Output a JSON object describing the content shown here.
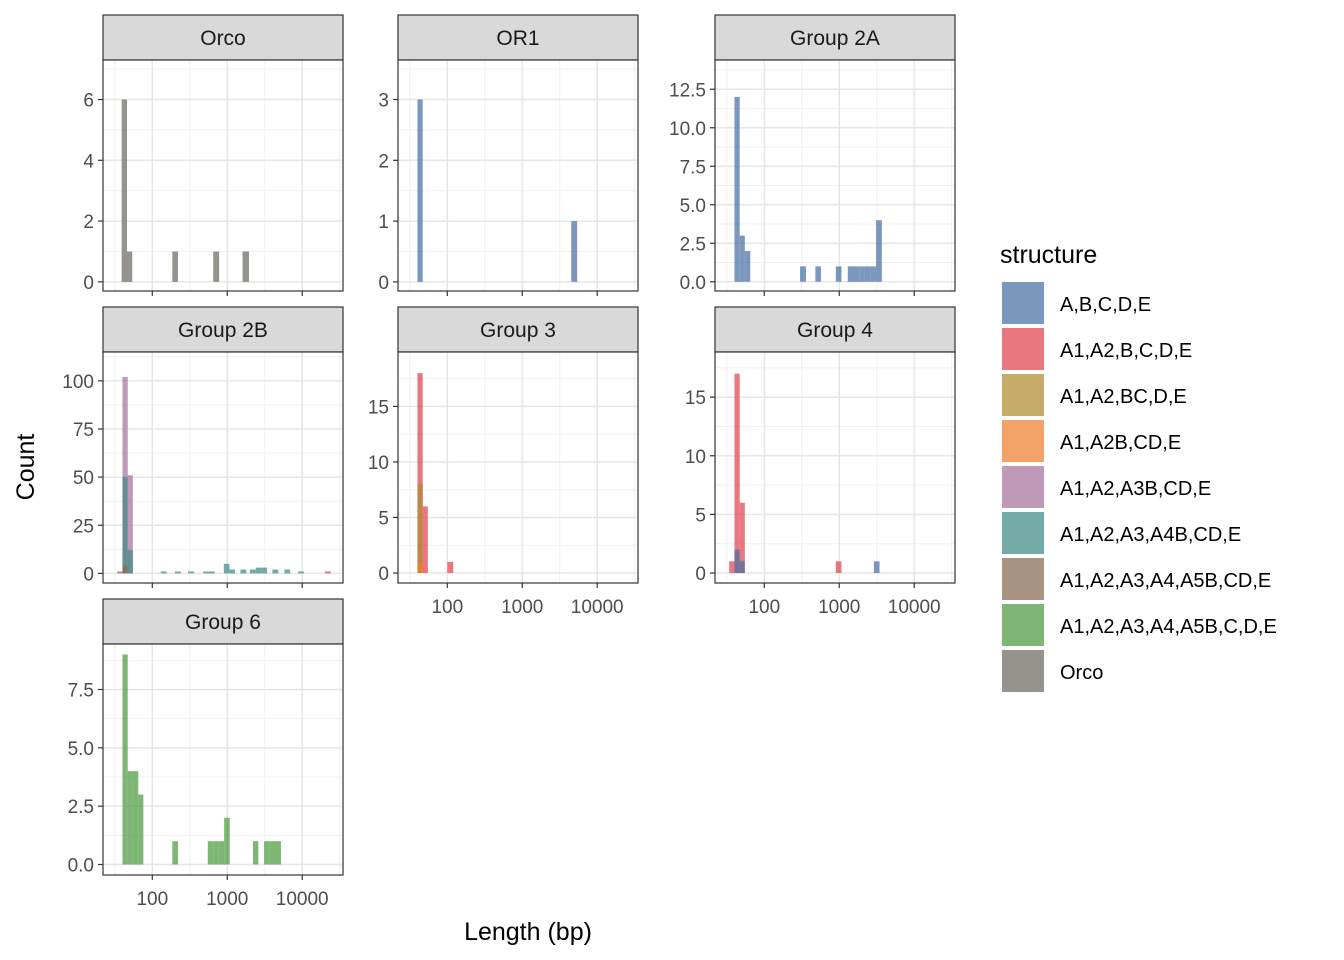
{
  "chart_data": {
    "type": "bar",
    "subtype": "faceted-histogram",
    "xlabel": "Length (bp)",
    "ylabel": "Count",
    "x_scale": "log10",
    "x_ticks": [
      100,
      1000,
      10000
    ],
    "x_tick_labels": [
      "100",
      "1000",
      "10000"
    ],
    "xlim": [
      22,
      35000
    ],
    "grid": true,
    "legend": {
      "title": "structure",
      "placement": "right",
      "entries": [
        {
          "name": "A,B,C,D,E",
          "color": "#4A6FA5"
        },
        {
          "name": "A1,A2,B,C,D,E",
          "color": "#E0434F"
        },
        {
          "name": "A1,A2,BC,D,E",
          "color": "#AE8C2E"
        },
        {
          "name": "A1,A2B,CD,E",
          "color": "#EF8030"
        },
        {
          "name": "A1,A2,A3B,CD,E",
          "color": "#A8709E"
        },
        {
          "name": "A1,A2,A3,A4B,CD,E",
          "color": "#3D8B85"
        },
        {
          "name": "A1,A2,A3,A4,A5B,CD,E",
          "color": "#8B6A50"
        },
        {
          "name": "A1,A2,A3,A4,A5B,C,D,E",
          "color": "#4C9A3E"
        },
        {
          "name": "Orco",
          "color": "#6E6862"
        }
      ]
    },
    "panels": [
      {
        "title": "Orco",
        "ylim": [
          -0.3,
          7.3
        ],
        "y_ticks": [
          0,
          2,
          4,
          6
        ],
        "y_tick_labels": [
          "0",
          "2",
          "4",
          "6"
        ],
        "bars": [
          {
            "series": "Orco",
            "x_from": 39,
            "x_to": 46,
            "count": 6
          },
          {
            "series": "Orco",
            "x_from": 46,
            "x_to": 54,
            "count": 1
          },
          {
            "series": "Orco",
            "x_from": 185,
            "x_to": 220,
            "count": 1
          },
          {
            "series": "Orco",
            "x_from": 650,
            "x_to": 780,
            "count": 1
          },
          {
            "series": "Orco",
            "x_from": 1600,
            "x_to": 1950,
            "count": 1
          }
        ]
      },
      {
        "title": "OR1",
        "ylim": [
          -0.15,
          3.65
        ],
        "y_ticks": [
          0,
          1,
          2,
          3
        ],
        "y_tick_labels": [
          "0",
          "1",
          "2",
          "3"
        ],
        "bars": [
          {
            "series": "A,B,C,D,E",
            "x_from": 40,
            "x_to": 47,
            "count": 3
          },
          {
            "series": "A,B,C,D,E",
            "x_from": 4500,
            "x_to": 5400,
            "count": 1
          }
        ]
      },
      {
        "title": "Group 2A",
        "ylim": [
          -0.6,
          14.4
        ],
        "y_ticks": [
          0,
          2.5,
          5,
          7.5,
          10,
          12.5
        ],
        "y_tick_labels": [
          "0.0",
          "2.5",
          "5.0",
          "7.5",
          "10.0",
          "12.5"
        ],
        "bars": [
          {
            "series": "A,B,C,D,E",
            "x_from": 40,
            "x_to": 47,
            "count": 12
          },
          {
            "series": "A,B,C,D,E",
            "x_from": 47,
            "x_to": 55,
            "count": 3
          },
          {
            "series": "A,B,C,D,E",
            "x_from": 55,
            "x_to": 65,
            "count": 2
          },
          {
            "series": "A,B,C,D,E",
            "x_from": 300,
            "x_to": 360,
            "count": 1
          },
          {
            "series": "A,B,C,D,E",
            "x_from": 480,
            "x_to": 570,
            "count": 1
          },
          {
            "series": "A,B,C,D,E",
            "x_from": 900,
            "x_to": 1070,
            "count": 1
          },
          {
            "series": "A,B,C,D,E",
            "x_from": 1300,
            "x_to": 1550,
            "count": 1
          },
          {
            "series": "A,B,C,D,E",
            "x_from": 1550,
            "x_to": 1850,
            "count": 1
          },
          {
            "series": "A,B,C,D,E",
            "x_from": 1850,
            "x_to": 2200,
            "count": 1
          },
          {
            "series": "A,B,C,D,E",
            "x_from": 2200,
            "x_to": 2600,
            "count": 1
          },
          {
            "series": "A,B,C,D,E",
            "x_from": 2600,
            "x_to": 3100,
            "count": 1
          },
          {
            "series": "A,B,C,D,E",
            "x_from": 3100,
            "x_to": 3700,
            "count": 4
          }
        ]
      },
      {
        "title": "Group 2B",
        "ylim": [
          -5,
          115
        ],
        "y_ticks": [
          0,
          25,
          50,
          75,
          100
        ],
        "y_tick_labels": [
          "0",
          "25",
          "50",
          "75",
          "100"
        ],
        "bars": [
          {
            "series": "A1,A2,A3,A4,A5B,CD,E",
            "x_from": 34,
            "x_to": 40,
            "count": 1
          },
          {
            "series": "A1,A2,A3B,CD,E",
            "x_from": 40,
            "x_to": 47,
            "count": 102
          },
          {
            "series": "A1,A2,A3B,CD,E",
            "x_from": 47,
            "x_to": 55,
            "count": 51
          },
          {
            "series": "A1,A2,A3,A4B,CD,E",
            "x_from": 40,
            "x_to": 47,
            "count": 50
          },
          {
            "series": "A1,A2,A3,A4B,CD,E",
            "x_from": 47,
            "x_to": 55,
            "count": 12
          },
          {
            "series": "A1,A2,A3,A4,A5B,CD,E",
            "x_from": 40,
            "x_to": 47,
            "count": 4
          },
          {
            "series": "A1,A2,A3,A4B,CD,E",
            "x_from": 130,
            "x_to": 155,
            "count": 1
          },
          {
            "series": "A1,A2,A3,A4B,CD,E",
            "x_from": 200,
            "x_to": 240,
            "count": 1
          },
          {
            "series": "A1,A2,A3,A4B,CD,E",
            "x_from": 300,
            "x_to": 360,
            "count": 1
          },
          {
            "series": "A1,A2,A3,A4B,CD,E",
            "x_from": 480,
            "x_to": 570,
            "count": 1
          },
          {
            "series": "A1,A2,A3,A4B,CD,E",
            "x_from": 570,
            "x_to": 680,
            "count": 1
          },
          {
            "series": "A1,A2,A3,A4B,CD,E",
            "x_from": 900,
            "x_to": 1070,
            "count": 5
          },
          {
            "series": "A1,A2,A3,A4B,CD,E",
            "x_from": 1070,
            "x_to": 1270,
            "count": 2
          },
          {
            "series": "A1,A2,A3,A4B,CD,E",
            "x_from": 1500,
            "x_to": 1800,
            "count": 2
          },
          {
            "series": "A1,A2,A3,A4B,CD,E",
            "x_from": 2000,
            "x_to": 2400,
            "count": 2
          },
          {
            "series": "A1,A2,A3,A4B,CD,E",
            "x_from": 2400,
            "x_to": 2850,
            "count": 3
          },
          {
            "series": "A1,A2,A3,A4B,CD,E",
            "x_from": 2850,
            "x_to": 3400,
            "count": 3
          },
          {
            "series": "A1,A2,A3,A4B,CD,E",
            "x_from": 4000,
            "x_to": 4800,
            "count": 2
          },
          {
            "series": "A1,A2,A3,A4B,CD,E",
            "x_from": 5800,
            "x_to": 6900,
            "count": 2
          },
          {
            "series": "A1,A2,A3,A4B,CD,E",
            "x_from": 8800,
            "x_to": 10500,
            "count": 1
          },
          {
            "series": "A1,A2,B,C,D,E",
            "x_from": 20000,
            "x_to": 24000,
            "count": 1
          }
        ]
      },
      {
        "title": "Group 3",
        "ylim": [
          -0.9,
          19.9
        ],
        "y_ticks": [
          0,
          5,
          10,
          15
        ],
        "y_tick_labels": [
          "0",
          "5",
          "10",
          "15"
        ],
        "bars": [
          {
            "series": "A1,A2,B,C,D,E",
            "x_from": 40,
            "x_to": 47,
            "count": 18
          },
          {
            "series": "A1,A2,B,C,D,E",
            "x_from": 47,
            "x_to": 55,
            "count": 6
          },
          {
            "series": "A1,A2,BC,D,E",
            "x_from": 40,
            "x_to": 47,
            "count": 8
          },
          {
            "series": "A1,A2B,CD,E",
            "x_from": 40,
            "x_to": 47,
            "count": 1
          },
          {
            "series": "A1,A2,B,C,D,E",
            "x_from": 100,
            "x_to": 120,
            "count": 1
          }
        ]
      },
      {
        "title": "Group 4",
        "ylim": [
          -0.85,
          18.85
        ],
        "y_ticks": [
          0,
          5,
          10,
          15
        ],
        "y_tick_labels": [
          "0",
          "5",
          "10",
          "15"
        ],
        "bars": [
          {
            "series": "A1,A2,B,C,D,E",
            "x_from": 34,
            "x_to": 40,
            "count": 1
          },
          {
            "series": "A1,A2,B,C,D,E",
            "x_from": 40,
            "x_to": 47,
            "count": 17
          },
          {
            "series": "A1,A2,B,C,D,E",
            "x_from": 47,
            "x_to": 55,
            "count": 6
          },
          {
            "series": "A,B,C,D,E",
            "x_from": 40,
            "x_to": 47,
            "count": 2
          },
          {
            "series": "A,B,C,D,E",
            "x_from": 47,
            "x_to": 55,
            "count": 1
          },
          {
            "series": "A1,A2,B,C,D,E",
            "x_from": 900,
            "x_to": 1070,
            "count": 1
          },
          {
            "series": "A,B,C,D,E",
            "x_from": 2900,
            "x_to": 3450,
            "count": 1
          }
        ]
      },
      {
        "title": "Group 6",
        "ylim": [
          -0.45,
          9.45
        ],
        "y_ticks": [
          0,
          2.5,
          5,
          7.5
        ],
        "y_tick_labels": [
          "0.0",
          "2.5",
          "5.0",
          "7.5"
        ],
        "bars": [
          {
            "series": "A1,A2,A3,A4,A5B,C,D,E",
            "x_from": 40,
            "x_to": 47,
            "count": 9
          },
          {
            "series": "A1,A2,A3,A4,A5B,C,D,E",
            "x_from": 47,
            "x_to": 55,
            "count": 4
          },
          {
            "series": "A1,A2,A3,A4,A5B,C,D,E",
            "x_from": 55,
            "x_to": 65,
            "count": 4
          },
          {
            "series": "A1,A2,A3,A4,A5B,C,D,E",
            "x_from": 65,
            "x_to": 76,
            "count": 3
          },
          {
            "series": "A1,A2,A3,A4,A5B,C,D,E",
            "x_from": 185,
            "x_to": 220,
            "count": 1
          },
          {
            "series": "A1,A2,A3,A4,A5B,C,D,E",
            "x_from": 550,
            "x_to": 650,
            "count": 1
          },
          {
            "series": "A1,A2,A3,A4,A5B,C,D,E",
            "x_from": 650,
            "x_to": 770,
            "count": 1
          },
          {
            "series": "A1,A2,A3,A4,A5B,C,D,E",
            "x_from": 770,
            "x_to": 910,
            "count": 1
          },
          {
            "series": "A1,A2,A3,A4,A5B,C,D,E",
            "x_from": 910,
            "x_to": 1080,
            "count": 2
          },
          {
            "series": "A1,A2,A3,A4,A5B,C,D,E",
            "x_from": 2200,
            "x_to": 2600,
            "count": 1
          },
          {
            "series": "A1,A2,A3,A4,A5B,C,D,E",
            "x_from": 3100,
            "x_to": 3700,
            "count": 1
          },
          {
            "series": "A1,A2,A3,A4,A5B,C,D,E",
            "x_from": 3700,
            "x_to": 4400,
            "count": 1
          },
          {
            "series": "A1,A2,A3,A4,A5B,C,D,E",
            "x_from": 4400,
            "x_to": 5200,
            "count": 1
          }
        ]
      }
    ]
  }
}
